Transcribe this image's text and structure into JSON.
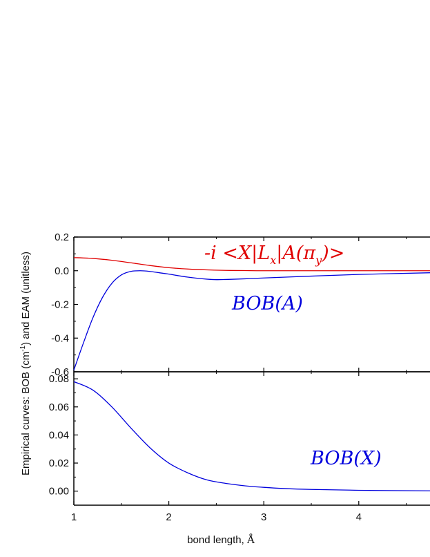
{
  "colors": {
    "red": "#e00000",
    "blue": "#0000dd",
    "axis": "#000000"
  },
  "chart_data": {
    "type": "line",
    "shared_x": {
      "label_prefix": "bond length, ",
      "label_unit": "Å",
      "range": [
        1.0,
        4.75
      ],
      "ticks": [
        1,
        2,
        3,
        4
      ]
    },
    "ylabel_prefix": "Empirical curves: BOB (cm",
    "ylabel_sup": "-1",
    "ylabel_suffix": ") and EAM (unitless)",
    "panels": [
      {
        "id": "top",
        "ylim": [
          -0.6,
          0.2
        ],
        "yticks": [
          0.2,
          0.0,
          -0.2,
          -0.4,
          -0.6
        ],
        "ytick_labels": [
          "0.2",
          "0.0",
          "-0.2",
          "-0.4",
          "-0.6"
        ],
        "annotations": [
          {
            "text": "-i <X|L",
            "sub": "x",
            "text2": "|A(π",
            "sub2": "y",
            "text3": ")>",
            "color": "red",
            "at": [
              2.9,
              0.085
            ]
          },
          {
            "text": "BOB(A)",
            "color": "blue",
            "at": [
              2.95,
              -0.2
            ]
          }
        ],
        "series": [
          {
            "color": "red",
            "x": [
              1.0,
              1.2,
              1.4,
              1.6,
              1.8,
              2.0,
              2.2,
              2.4,
              2.6,
              2.8,
              3.0,
              3.5,
              4.0,
              4.75
            ],
            "y": [
              0.078,
              0.073,
              0.062,
              0.047,
              0.031,
              0.018,
              0.01,
              0.005,
              0.002,
              0.001,
              0.0,
              0.0,
              0.0,
              0.0
            ]
          },
          {
            "color": "blue",
            "x": [
              1.0,
              1.1,
              1.2,
              1.3,
              1.4,
              1.5,
              1.6,
              1.7,
              1.8,
              1.9,
              2.0,
              2.2,
              2.4,
              2.5,
              2.6,
              2.8,
              3.0,
              3.5,
              4.0,
              4.75
            ],
            "y": [
              -0.59,
              -0.43,
              -0.28,
              -0.16,
              -0.075,
              -0.025,
              -0.004,
              0.0,
              -0.004,
              -0.012,
              -0.02,
              -0.038,
              -0.05,
              -0.053,
              -0.052,
              -0.048,
              -0.043,
              -0.032,
              -0.022,
              -0.012
            ]
          }
        ]
      },
      {
        "id": "bottom",
        "ylim": [
          -0.01,
          0.085
        ],
        "yticks": [
          0.08,
          0.06,
          0.04,
          0.02,
          0.0
        ],
        "ytick_labels": [
          "0.08",
          "0.06",
          "0.04",
          "0.02",
          "0.00"
        ],
        "x_tick_labels": [
          "1",
          "2",
          "3",
          "4"
        ],
        "annotations": [
          {
            "text": "BOB(X)",
            "color": "blue",
            "at": [
              3.5,
              0.02
            ]
          }
        ],
        "series": [
          {
            "color": "blue",
            "x": [
              1.0,
              1.2,
              1.4,
              1.6,
              1.8,
              2.0,
              2.2,
              2.4,
              2.6,
              2.8,
              3.0,
              3.2,
              3.5,
              4.0,
              4.75
            ],
            "y": [
              0.078,
              0.072,
              0.06,
              0.045,
              0.031,
              0.02,
              0.013,
              0.008,
              0.0055,
              0.0038,
              0.0027,
              0.0019,
              0.0012,
              0.0006,
              0.0002
            ]
          }
        ]
      }
    ]
  }
}
